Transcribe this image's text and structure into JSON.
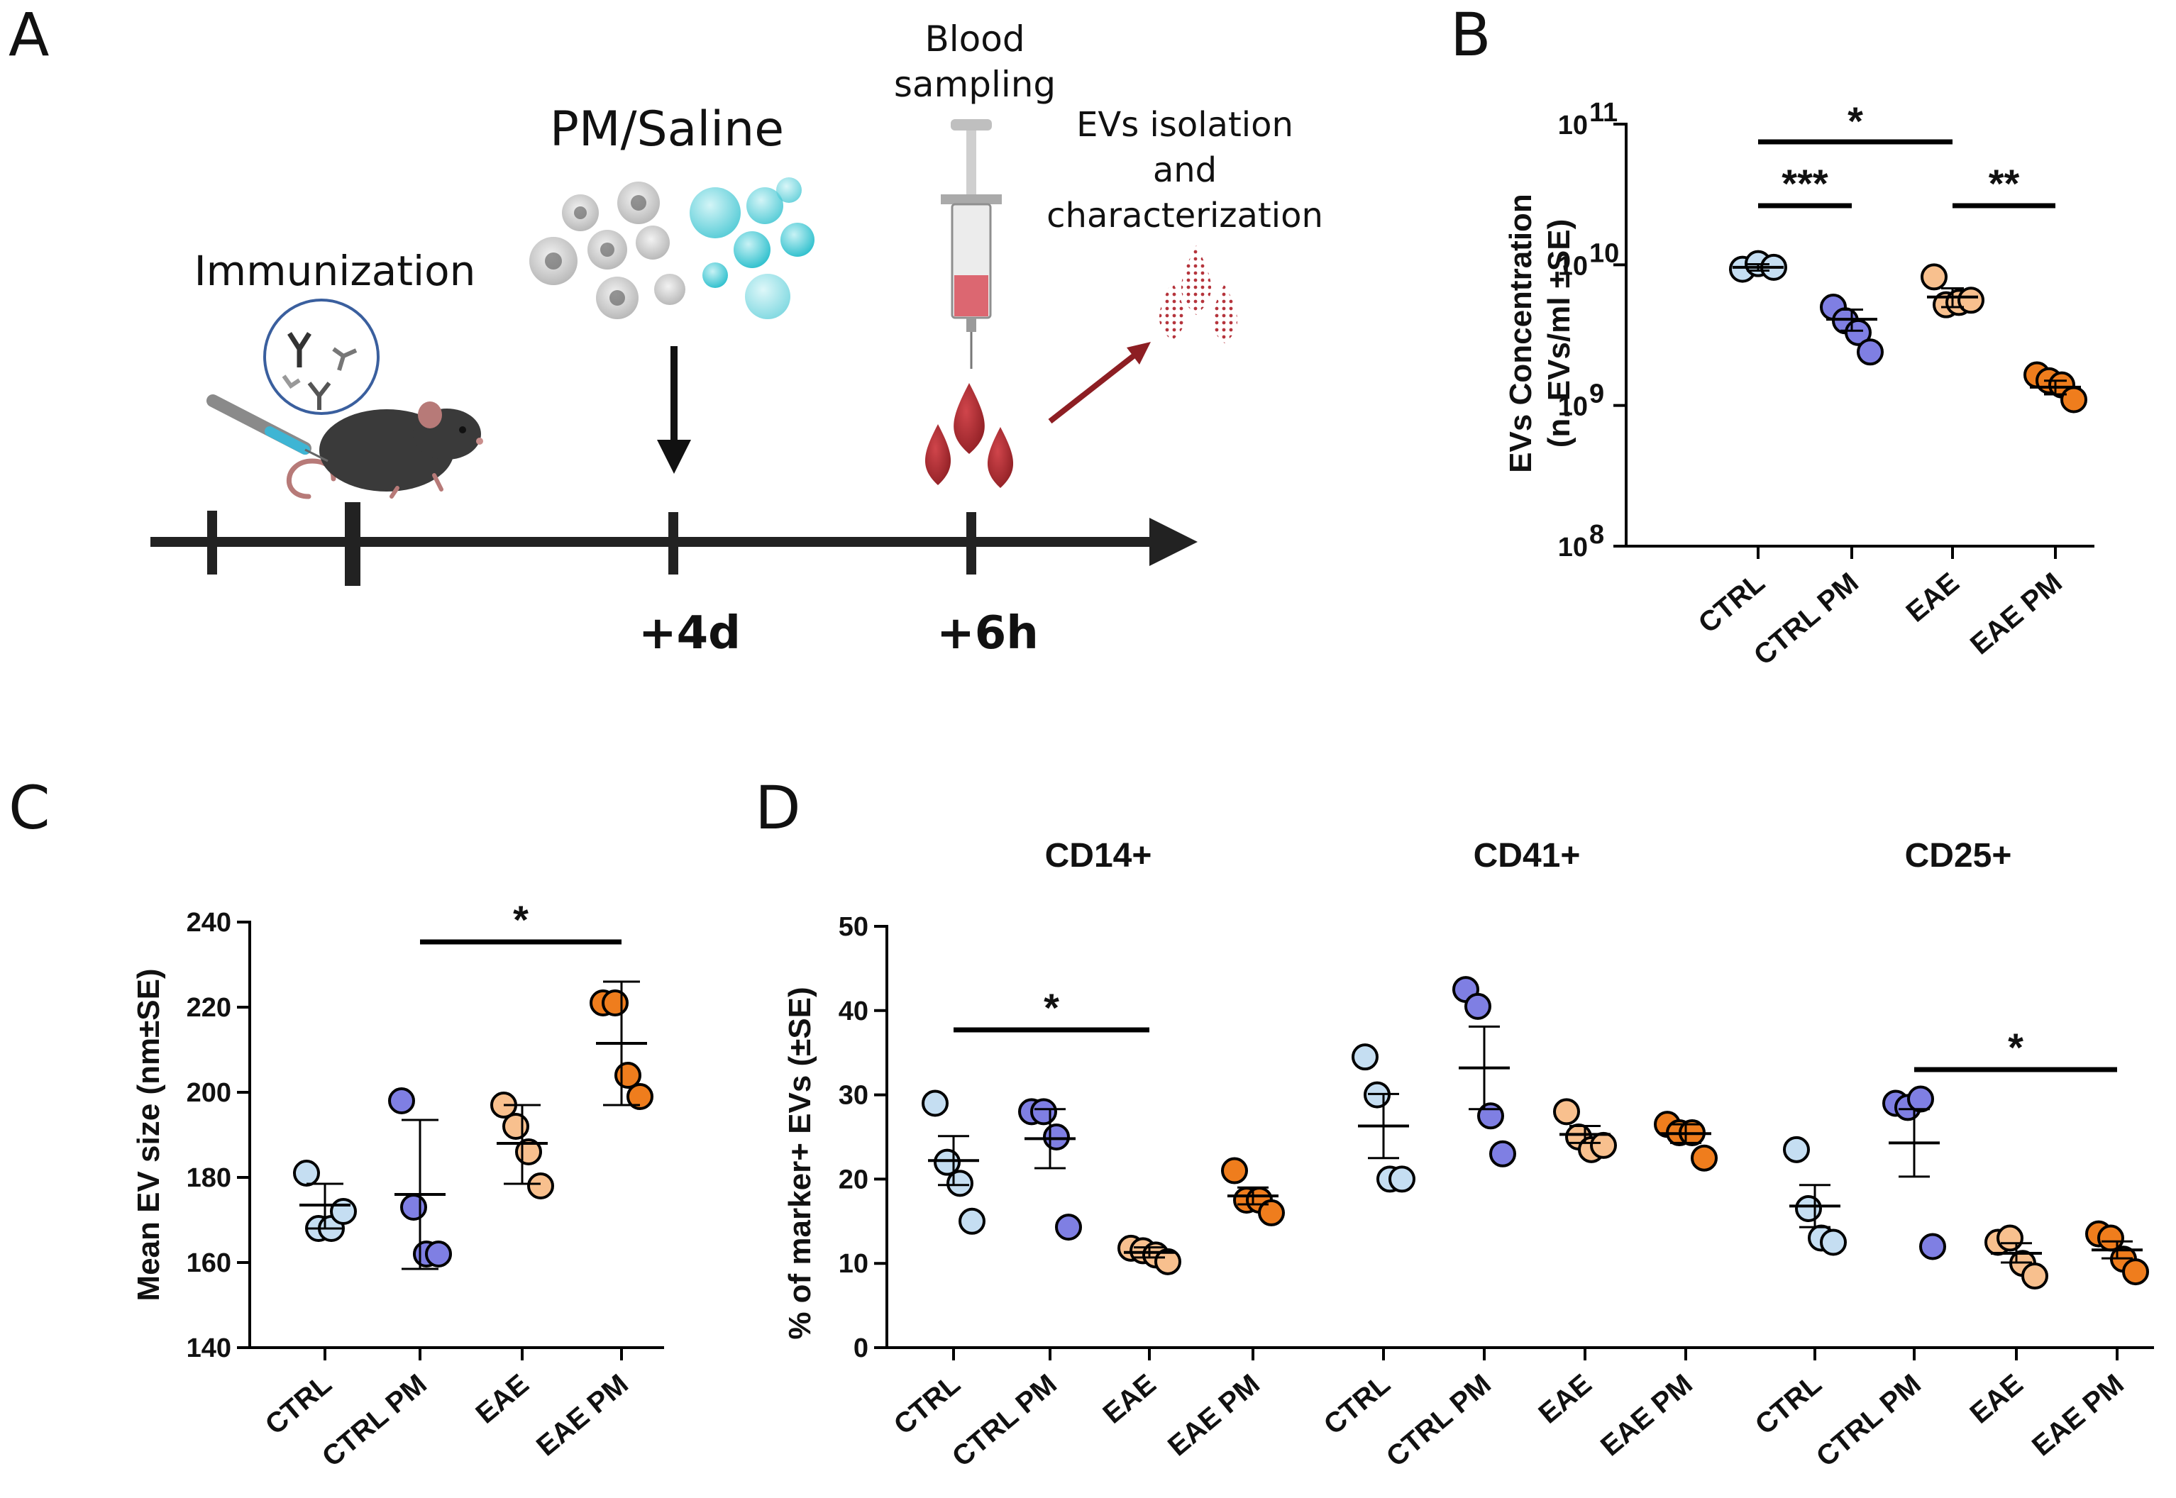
{
  "panels": {
    "a": "A",
    "b": "B",
    "c": "C",
    "d": "D"
  },
  "schematic": {
    "immunization": "Immunization",
    "pm_saline": "PM/Saline",
    "blood_line1": "Blood",
    "blood_line2": "sampling",
    "evs_line1": "EVs isolation",
    "evs_line2": "and",
    "evs_line3": "characterization",
    "day4": "+4d",
    "hour6": "+6h"
  },
  "colors": {
    "CTRL": "#c5def2",
    "CTRL PM": "#7f7fe3",
    "EAE": "#f8c08e",
    "EAE PM": "#ef7d1d"
  },
  "chart_data": [
    {
      "id": "B",
      "type": "scatter",
      "scale": "log",
      "title": "",
      "ylabel_line1": "EVs Concentration",
      "ylabel_line2": "(n. EVs/ml ±SE)",
      "ylim": [
        100000000,
        100000000000
      ],
      "tick_bases": [
        "10",
        "10",
        "10",
        "10"
      ],
      "tick_exponents": [
        "8",
        "9",
        "10",
        "11"
      ],
      "categories": [
        "CTRL",
        "CTRL PM",
        "EAE",
        "EAE PM"
      ],
      "series": [
        {
          "name": "CTRL",
          "values": [
            9300000000,
            10200000000,
            9600000000
          ],
          "mean": 9600000000,
          "se_low": 9100000000,
          "se_high": 10100000000
        },
        {
          "name": "CTRL PM",
          "values": [
            5000000000,
            4000000000,
            3300000000,
            2400000000
          ],
          "mean": 4100000000,
          "se_low": 3400000000,
          "se_high": 4800000000
        },
        {
          "name": "EAE",
          "values": [
            8200000000,
            5200000000,
            5400000000,
            5600000000
          ],
          "mean": 5900000000,
          "se_low": 5000000000,
          "se_high": 6800000000
        },
        {
          "name": "EAE PM",
          "values": [
            1650000000,
            1500000000,
            1400000000,
            1100000000
          ],
          "mean": 1350000000,
          "se_low": 1200000000,
          "se_high": 1500000000
        }
      ],
      "significance": [
        {
          "from": "CTRL",
          "to": "EAE",
          "label": "*"
        },
        {
          "from": "CTRL",
          "to": "CTRL PM",
          "label": "***"
        },
        {
          "from": "EAE",
          "to": "EAE PM",
          "label": "**"
        }
      ]
    },
    {
      "id": "C",
      "type": "scatter",
      "title": "",
      "ylabel": "Mean EV size (nm±SE)",
      "ylim": [
        140,
        240
      ],
      "yticks": [
        140,
        160,
        180,
        200,
        220,
        240
      ],
      "categories": [
        "CTRL",
        "CTRL PM",
        "EAE",
        "EAE PM"
      ],
      "series": [
        {
          "name": "CTRL",
          "values": [
            181,
            168,
            168,
            172
          ],
          "mean": 173.5,
          "se_low": 168,
          "se_high": 178.5
        },
        {
          "name": "CTRL PM",
          "values": [
            198,
            173,
            162,
            162
          ],
          "mean": 176,
          "se_low": 158.5,
          "se_high": 193.5
        },
        {
          "name": "EAE",
          "values": [
            197,
            192,
            186,
            178
          ],
          "mean": 188,
          "se_low": 178.5,
          "se_high": 197
        },
        {
          "name": "EAE PM",
          "values": [
            221,
            221,
            204,
            199
          ],
          "mean": 211.5,
          "se_low": 197,
          "se_high": 226
        }
      ],
      "significance": [
        {
          "from": "CTRL PM",
          "to": "EAE PM",
          "label": "*"
        }
      ]
    },
    {
      "id": "D",
      "type": "scatter",
      "title": "",
      "ylabel": "% of marker+ EVs (±SE)",
      "ylim": [
        0,
        50
      ],
      "yticks": [
        0,
        10,
        20,
        30,
        40,
        50
      ],
      "groups": [
        {
          "marker": "CD14+",
          "categories": [
            "CTRL",
            "CTRL PM",
            "EAE",
            "EAE PM"
          ],
          "series": [
            {
              "name": "CTRL",
              "values": [
                29,
                22,
                19.5,
                15
              ],
              "mean": 22.2,
              "se_low": 19.3,
              "se_high": 25.1
            },
            {
              "name": "CTRL PM",
              "values": [
                28,
                28,
                25,
                14.3
              ],
              "mean": 24.8,
              "se_low": 21.3,
              "se_high": 28.3
            },
            {
              "name": "EAE",
              "values": [
                11.8,
                11.5,
                11,
                10.2
              ],
              "mean": 11.3,
              "se_low": 10.7,
              "se_high": 11.9
            },
            {
              "name": "EAE PM",
              "values": [
                21,
                17.5,
                17.5,
                16
              ],
              "mean": 18,
              "se_low": 17,
              "se_high": 19
            }
          ],
          "significance": [
            {
              "from": "CTRL",
              "to": "EAE",
              "label": "*"
            }
          ]
        },
        {
          "marker": "CD41+",
          "categories": [
            "CTRL",
            "CTRL PM",
            "EAE",
            "EAE PM"
          ],
          "series": [
            {
              "name": "CTRL",
              "values": [
                34.5,
                30,
                20,
                20
              ],
              "mean": 26.3,
              "se_low": 22.5,
              "se_high": 30.1
            },
            {
              "name": "CTRL PM",
              "values": [
                42.5,
                40.5,
                27.5,
                23
              ],
              "mean": 33.2,
              "se_low": 28.3,
              "se_high": 38.1
            },
            {
              "name": "EAE",
              "values": [
                28,
                25,
                23.5,
                24
              ],
              "mean": 25.3,
              "se_low": 24.3,
              "se_high": 26.3
            },
            {
              "name": "EAE PM",
              "values": [
                26.5,
                25.5,
                25.5,
                22.5
              ],
              "mean": 25.4,
              "se_low": 24.3,
              "se_high": 26.5
            }
          ],
          "significance": []
        },
        {
          "marker": "CD25+",
          "categories": [
            "CTRL",
            "CTRL PM",
            "EAE",
            "EAE PM"
          ],
          "series": [
            {
              "name": "CTRL",
              "values": [
                23.5,
                16.5,
                13,
                12.5
              ],
              "mean": 16.8,
              "se_low": 14.3,
              "se_high": 19.3
            },
            {
              "name": "CTRL PM",
              "values": [
                29,
                28.5,
                29.5,
                12
              ],
              "mean": 24.3,
              "se_low": 20.3,
              "se_high": 28.3
            },
            {
              "name": "EAE",
              "values": [
                12.5,
                13,
                10,
                8.5
              ],
              "mean": 11.2,
              "se_low": 10.1,
              "se_high": 12.4
            },
            {
              "name": "EAE PM",
              "values": [
                13.5,
                13,
                10.5,
                9
              ],
              "mean": 11.6,
              "se_low": 10.6,
              "se_high": 12.6
            }
          ],
          "significance": [
            {
              "from": "CTRL PM",
              "to": "EAE PM",
              "label": "*"
            }
          ]
        }
      ]
    }
  ]
}
